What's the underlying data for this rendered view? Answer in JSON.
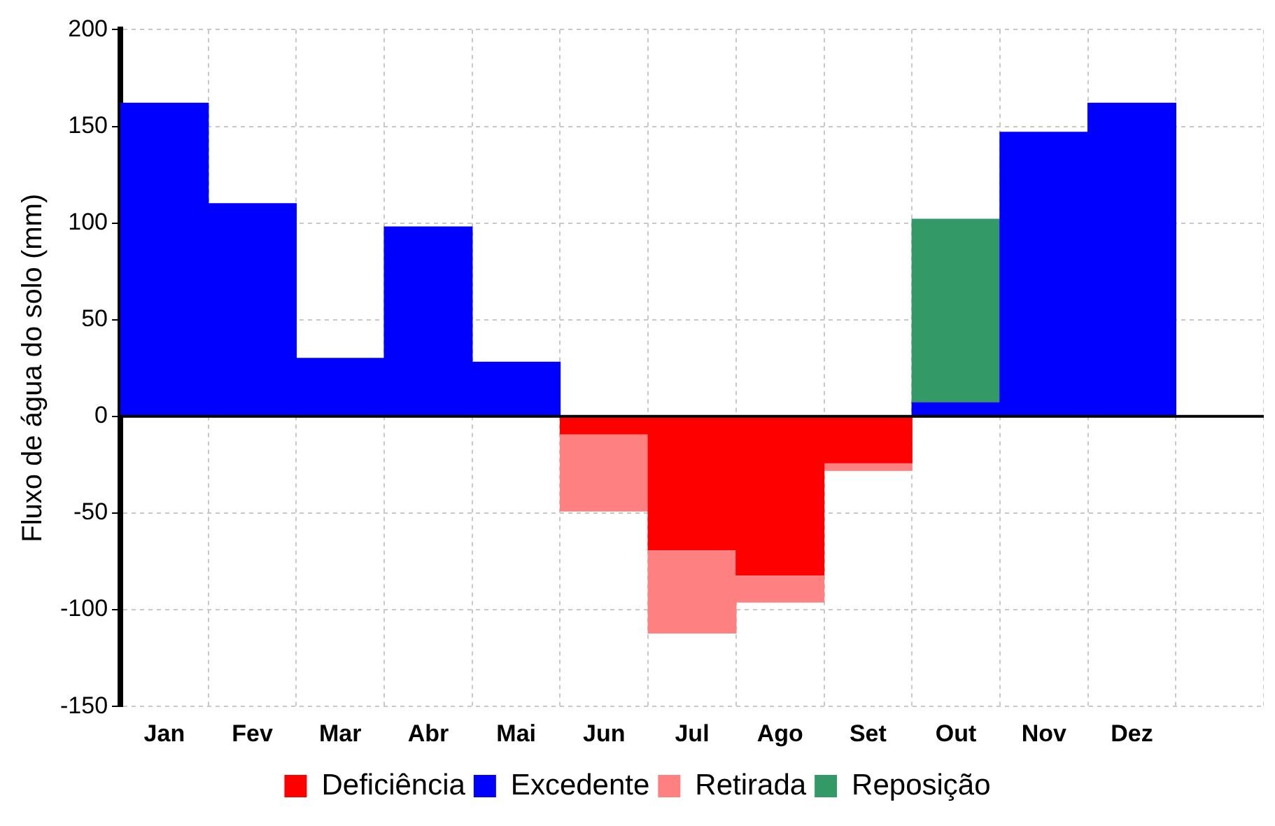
{
  "chart_data": {
    "type": "bar",
    "stacked": true,
    "ylabel": "Fluxo de água do solo (mm)",
    "categories": [
      "Jan",
      "Fev",
      "Mar",
      "Abr",
      "Mai",
      "Jun",
      "Jul",
      "Ago",
      "Set",
      "Out",
      "Nov",
      "Dez",
      null
    ],
    "series": [
      {
        "name": "Deficiência",
        "color": "#ff0000",
        "values": [
          null,
          null,
          null,
          null,
          null,
          -9,
          -69,
          -82,
          -24,
          null,
          null,
          null,
          null
        ]
      },
      {
        "name": "Excedente",
        "color": "#0000ff",
        "values": [
          162,
          110,
          30,
          98,
          28,
          null,
          null,
          null,
          null,
          7,
          147,
          162,
          null
        ]
      },
      {
        "name": "Retirada",
        "color": "#ff8080",
        "values": [
          null,
          null,
          null,
          null,
          null,
          -40,
          -43,
          -14,
          -4,
          null,
          null,
          null,
          null
        ]
      },
      {
        "name": "Reposição",
        "color": "#339966",
        "values": [
          null,
          null,
          null,
          null,
          null,
          null,
          null,
          null,
          null,
          95,
          null,
          null,
          null
        ]
      }
    ],
    "ylim": [
      -150,
      200
    ],
    "yticks": [
      -150,
      -100,
      -50,
      0,
      50,
      100,
      150,
      200
    ],
    "grid": true,
    "legend": "bottom",
    "ref_lines": [
      {
        "axis": "y",
        "value": 0,
        "color": "#000000"
      }
    ]
  }
}
